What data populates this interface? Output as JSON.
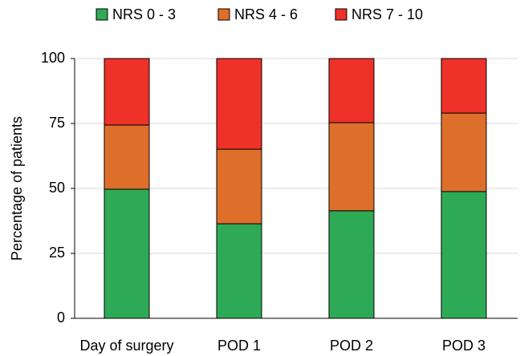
{
  "chart_data": {
    "type": "bar",
    "stacked": true,
    "y_label": "Percentage of patients",
    "categories": [
      "Day of surgery",
      "POD 1",
      "POD 2",
      "POD 3"
    ],
    "series": [
      {
        "name": "NRS 0 - 3",
        "color": "#2eaa56",
        "values": [
          49.7,
          36.4,
          41.4,
          48.8
        ]
      },
      {
        "name": "NRS 4 - 6",
        "color": "#de6f2a",
        "values": [
          24.7,
          28.7,
          33.9,
          30.2
        ]
      },
      {
        "name": "NRS 7 - 10",
        "color": "#ee3129",
        "values": [
          25.6,
          34.9,
          24.7,
          21.0
        ]
      }
    ],
    "ylim": [
      0,
      100
    ],
    "yticks": [
      0,
      25,
      50,
      75,
      100
    ],
    "grid": true,
    "legend": "top"
  }
}
